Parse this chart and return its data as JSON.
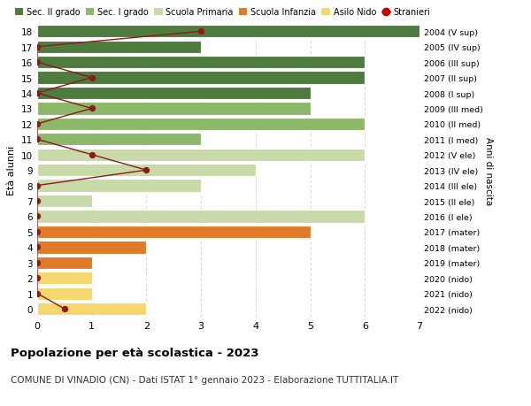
{
  "ages": [
    0,
    1,
    2,
    3,
    4,
    5,
    6,
    7,
    8,
    9,
    10,
    11,
    12,
    13,
    14,
    15,
    16,
    17,
    18
  ],
  "right_labels": [
    "2022 (nido)",
    "2021 (nido)",
    "2020 (nido)",
    "2019 (mater)",
    "2018 (mater)",
    "2017 (mater)",
    "2016 (I ele)",
    "2015 (II ele)",
    "2014 (III ele)",
    "2013 (IV ele)",
    "2012 (V ele)",
    "2011 (I med)",
    "2010 (II med)",
    "2009 (III med)",
    "2008 (I sup)",
    "2007 (II sup)",
    "2006 (III sup)",
    "2005 (IV sup)",
    "2004 (V sup)"
  ],
  "bar_values": [
    2,
    1,
    1,
    1,
    2,
    5,
    6,
    1,
    3,
    4,
    6,
    3,
    6,
    5,
    5,
    6,
    6,
    3,
    7
  ],
  "bar_colors": [
    "#f5d76e",
    "#f5d76e",
    "#f5d76e",
    "#e07b2a",
    "#e07b2a",
    "#e07b2a",
    "#c8daa8",
    "#c8daa8",
    "#c8daa8",
    "#c8daa8",
    "#c8daa8",
    "#8db86a",
    "#8db86a",
    "#8db86a",
    "#4e7c3f",
    "#4e7c3f",
    "#4e7c3f",
    "#4e7c3f",
    "#4e7c3f"
  ],
  "stranieri_values": [
    0.5,
    0,
    0,
    0,
    0,
    0,
    0,
    0,
    0,
    2,
    1,
    0,
    0,
    1,
    0,
    1,
    0,
    0,
    3
  ],
  "stranieri_color": "#8b1a1a",
  "legend_labels": [
    "Sec. II grado",
    "Sec. I grado",
    "Scuola Primaria",
    "Scuola Infanzia",
    "Asilo Nido",
    "Stranieri"
  ],
  "legend_colors": [
    "#4e7c3f",
    "#8db86a",
    "#c8daa8",
    "#e07b2a",
    "#f5d76e",
    "#cc0000"
  ],
  "ylabel": "Età alunni",
  "right_ylabel": "Anni di nascita",
  "title": "Popolazione per età scolastica - 2023",
  "subtitle": "COMUNE DI VINADIO (CN) - Dati ISTAT 1° gennaio 2023 - Elaborazione TUTTITALIA.IT",
  "xlim": [
    0,
    7
  ],
  "ylim": [
    -0.5,
    18.5
  ],
  "grid_color": "#d0d0d0",
  "bg_color": "#ffffff",
  "bar_edge_color": "#ffffff"
}
